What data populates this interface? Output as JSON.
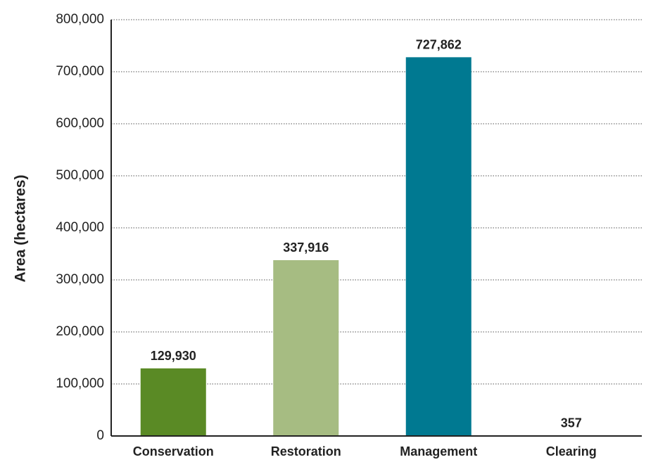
{
  "chart_data": {
    "type": "bar",
    "title": "",
    "xlabel": "",
    "ylabel": "Area (hectares)",
    "ylim": [
      0,
      800000
    ],
    "y_ticks": [
      0,
      100000,
      200000,
      300000,
      400000,
      500000,
      600000,
      700000,
      800000
    ],
    "y_tick_labels": [
      "0",
      "100,000",
      "200,000",
      "300,000",
      "400,000",
      "500,000",
      "600,000",
      "700,000",
      "800,000"
    ],
    "grid": "horizontal dotted",
    "categories": [
      "Conservation",
      "Restoration",
      "Management",
      "Clearing"
    ],
    "values": [
      129930,
      337916,
      727862,
      357
    ],
    "value_labels": [
      "129,930",
      "337,916",
      "727,862",
      "357"
    ],
    "colors": [
      "#5a8a25",
      "#a6bc82",
      "#007991",
      "#007991"
    ]
  }
}
